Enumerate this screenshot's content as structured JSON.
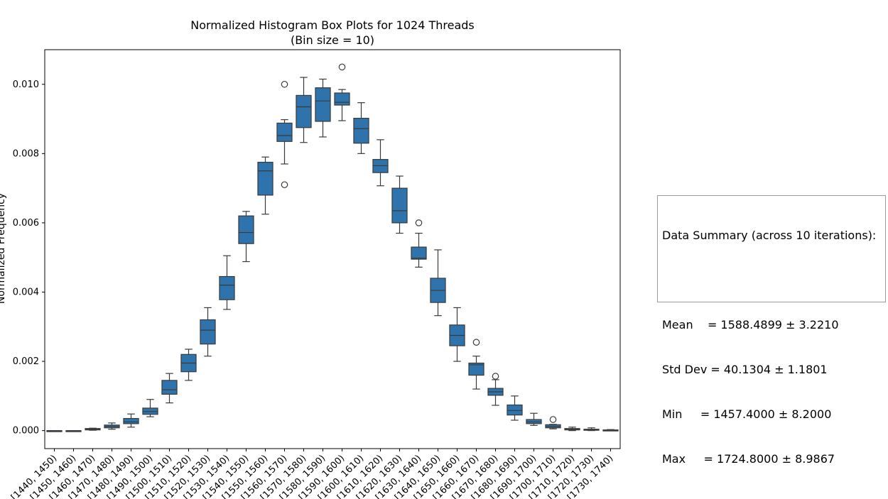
{
  "chart_data": {
    "type": "box",
    "title": "Normalized Histogram Box Plots for 1024 Threads",
    "subtitle": "(Bin size = 10)",
    "ylabel": "Normalized Frequency",
    "xlabel": "",
    "ylim": [
      -0.00052,
      0.011
    ],
    "yticks": [
      0.0,
      0.002,
      0.004,
      0.006,
      0.008,
      0.01
    ],
    "ytick_labels": [
      "0.000",
      "0.002",
      "0.004",
      "0.006",
      "0.008",
      "0.010"
    ],
    "grid": false,
    "box_color": "#2e73ab",
    "edge_color": "#3a3a3a",
    "categories": [
      "[1440, 1450)",
      "[1450, 1460)",
      "[1460, 1470)",
      "[1470, 1480)",
      "[1480, 1490)",
      "[1490, 1500)",
      "[1500, 1510)",
      "[1510, 1520)",
      "[1520, 1530)",
      "[1530, 1540)",
      "[1540, 1550)",
      "[1550, 1560)",
      "[1560, 1570)",
      "[1570, 1580)",
      "[1580, 1590)",
      "[1590, 1600)",
      "[1600, 1610)",
      "[1610, 1620)",
      "[1620, 1630)",
      "[1630, 1640)",
      "[1640, 1650)",
      "[1650, 1660)",
      "[1660, 1670)",
      "[1670, 1680)",
      "[1680, 1690)",
      "[1690, 1700)",
      "[1700, 1710)",
      "[1710, 1720)",
      "[1720, 1730)",
      "[1730, 1740)"
    ],
    "boxes": [
      {
        "whisker_low": 0.0,
        "q1": 0.0,
        "median": 0.0,
        "q3": 0.0,
        "whisker_high": 0.0,
        "outliers": []
      },
      {
        "whisker_low": 0.0,
        "q1": 0.0,
        "median": 0.0,
        "q3": 0.0,
        "whisker_high": 0.0,
        "outliers": []
      },
      {
        "whisker_low": 1e-05,
        "q1": 2e-05,
        "median": 4e-05,
        "q3": 6e-05,
        "whisker_high": 7e-05,
        "outliers": []
      },
      {
        "whisker_low": 4e-05,
        "q1": 8e-05,
        "median": 0.00012,
        "q3": 0.00016,
        "whisker_high": 0.00022,
        "outliers": []
      },
      {
        "whisker_low": 0.0001,
        "q1": 0.0002,
        "median": 0.00025,
        "q3": 0.00035,
        "whisker_high": 0.00048,
        "outliers": []
      },
      {
        "whisker_low": 0.0004,
        "q1": 0.00047,
        "median": 0.00055,
        "q3": 0.00065,
        "whisker_high": 0.0009,
        "outliers": []
      },
      {
        "whisker_low": 0.0008,
        "q1": 0.00105,
        "median": 0.00118,
        "q3": 0.00145,
        "whisker_high": 0.00165,
        "outliers": []
      },
      {
        "whisker_low": 0.00145,
        "q1": 0.0017,
        "median": 0.00195,
        "q3": 0.0022,
        "whisker_high": 0.00235,
        "outliers": []
      },
      {
        "whisker_low": 0.00215,
        "q1": 0.0025,
        "median": 0.0029,
        "q3": 0.0032,
        "whisker_high": 0.00355,
        "outliers": []
      },
      {
        "whisker_low": 0.0035,
        "q1": 0.00378,
        "median": 0.0042,
        "q3": 0.00445,
        "whisker_high": 0.00505,
        "outliers": []
      },
      {
        "whisker_low": 0.00488,
        "q1": 0.0054,
        "median": 0.00572,
        "q3": 0.0062,
        "whisker_high": 0.00633,
        "outliers": []
      },
      {
        "whisker_low": 0.00625,
        "q1": 0.0068,
        "median": 0.0075,
        "q3": 0.00775,
        "whisker_high": 0.0079,
        "outliers": []
      },
      {
        "whisker_low": 0.0077,
        "q1": 0.00835,
        "median": 0.00852,
        "q3": 0.00888,
        "whisker_high": 0.00898,
        "outliers": [
          0.01,
          0.0071
        ]
      },
      {
        "whisker_low": 0.00832,
        "q1": 0.00875,
        "median": 0.00935,
        "q3": 0.00968,
        "whisker_high": 0.0102,
        "outliers": []
      },
      {
        "whisker_low": 0.00848,
        "q1": 0.00893,
        "median": 0.00952,
        "q3": 0.0099,
        "whisker_high": 0.01015,
        "outliers": []
      },
      {
        "whisker_low": 0.00895,
        "q1": 0.0094,
        "median": 0.00948,
        "q3": 0.00975,
        "whisker_high": 0.00985,
        "outliers": [
          0.0105
        ]
      },
      {
        "whisker_low": 0.008,
        "q1": 0.0083,
        "median": 0.00872,
        "q3": 0.00902,
        "whisker_high": 0.00947,
        "outliers": []
      },
      {
        "whisker_low": 0.00707,
        "q1": 0.00745,
        "median": 0.00765,
        "q3": 0.00783,
        "whisker_high": 0.0084,
        "outliers": []
      },
      {
        "whisker_low": 0.0057,
        "q1": 0.006,
        "median": 0.00635,
        "q3": 0.007,
        "whisker_high": 0.00735,
        "outliers": []
      },
      {
        "whisker_low": 0.00472,
        "q1": 0.00495,
        "median": 0.00498,
        "q3": 0.0053,
        "whisker_high": 0.0057,
        "outliers": [
          0.006
        ]
      },
      {
        "whisker_low": 0.00332,
        "q1": 0.0037,
        "median": 0.00405,
        "q3": 0.0044,
        "whisker_high": 0.00522,
        "outliers": []
      },
      {
        "whisker_low": 0.002,
        "q1": 0.00245,
        "median": 0.00275,
        "q3": 0.00305,
        "whisker_high": 0.00355,
        "outliers": []
      },
      {
        "whisker_low": 0.0012,
        "q1": 0.0016,
        "median": 0.0019,
        "q3": 0.00195,
        "whisker_high": 0.00215,
        "outliers": [
          0.00255
        ]
      },
      {
        "whisker_low": 0.00073,
        "q1": 0.00102,
        "median": 0.00112,
        "q3": 0.00122,
        "whisker_high": 0.00147,
        "outliers": [
          0.00157
        ]
      },
      {
        "whisker_low": 0.0003,
        "q1": 0.00045,
        "median": 0.00058,
        "q3": 0.00074,
        "whisker_high": 0.001,
        "outliers": []
      },
      {
        "whisker_low": 0.00015,
        "q1": 0.0002,
        "median": 0.00025,
        "q3": 0.00032,
        "whisker_high": 0.0005,
        "outliers": []
      },
      {
        "whisker_low": 5e-05,
        "q1": 8e-05,
        "median": 0.00012,
        "q3": 0.00017,
        "whisker_high": 0.00018,
        "outliers": [
          0.00032
        ]
      },
      {
        "whisker_low": 0.0,
        "q1": 2e-05,
        "median": 4e-05,
        "q3": 6e-05,
        "whisker_high": 0.0001,
        "outliers": []
      },
      {
        "whisker_low": 0.0,
        "q1": 1e-05,
        "median": 2e-05,
        "q3": 4e-05,
        "whisker_high": 8e-05,
        "outliers": []
      },
      {
        "whisker_low": 0.0,
        "q1": 0.0,
        "median": 1e-05,
        "q3": 2e-05,
        "whisker_high": 3e-05,
        "outliers": []
      }
    ]
  },
  "summary": {
    "lines": [
      "Data Summary (across 10 iterations):",
      "",
      "Mean    = 1588.4899 ± 3.2210",
      "Std Dev = 40.1304 ± 1.1801",
      "Min     = 1457.4000 ± 8.2000",
      "Max     = 1724.8000 ± 8.9867"
    ]
  }
}
